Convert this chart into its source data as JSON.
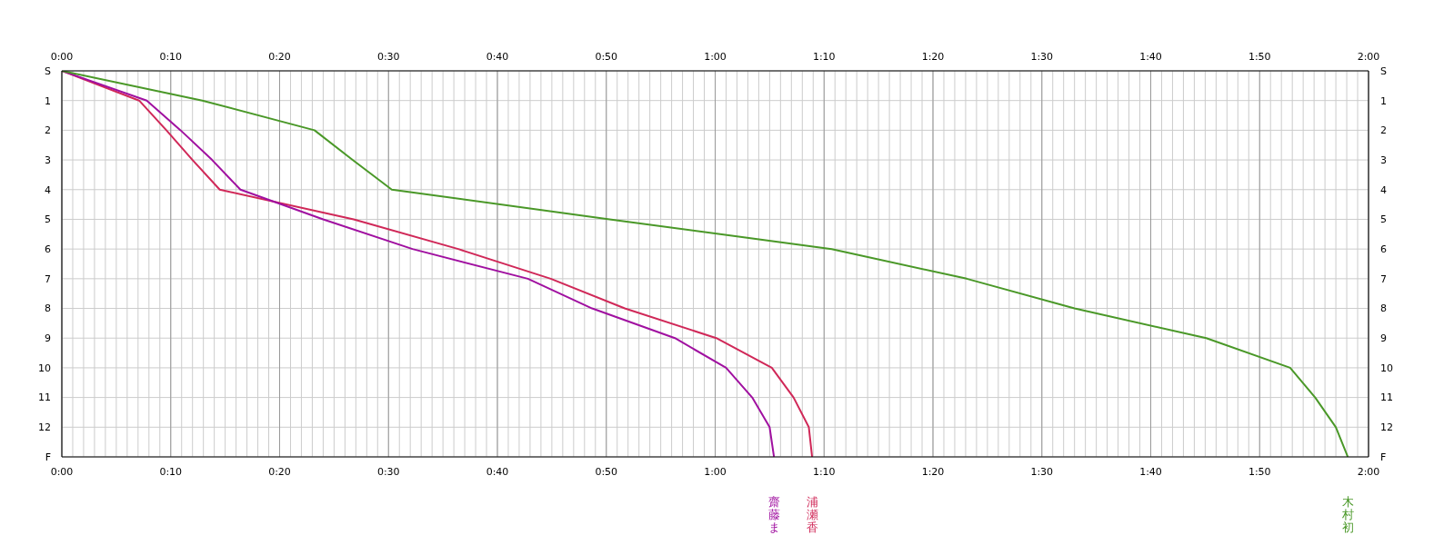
{
  "chart_data": {
    "type": "line",
    "xlim": [
      0,
      120
    ],
    "xticks": [
      {
        "value": 0,
        "label": "0:00"
      },
      {
        "value": 1,
        "label": null
      },
      {
        "value": 2,
        "label": null
      },
      {
        "value": 3,
        "label": null
      },
      {
        "value": 4,
        "label": null
      },
      {
        "value": 5,
        "label": null
      },
      {
        "value": 6,
        "label": null
      },
      {
        "value": 7,
        "label": null
      },
      {
        "value": 8,
        "label": null
      },
      {
        "value": 9,
        "label": null
      },
      {
        "value": 10,
        "label": "0:10"
      },
      {
        "value": 11,
        "label": null
      },
      {
        "value": 12,
        "label": null
      },
      {
        "value": 13,
        "label": null
      },
      {
        "value": 14,
        "label": null
      },
      {
        "value": 15,
        "label": null
      },
      {
        "value": 16,
        "label": null
      },
      {
        "value": 17,
        "label": null
      },
      {
        "value": 18,
        "label": null
      },
      {
        "value": 19,
        "label": null
      },
      {
        "value": 20,
        "label": "0:20"
      },
      {
        "value": 21,
        "label": null
      },
      {
        "value": 22,
        "label": null
      },
      {
        "value": 23,
        "label": null
      },
      {
        "value": 24,
        "label": null
      },
      {
        "value": 25,
        "label": null
      },
      {
        "value": 26,
        "label": null
      },
      {
        "value": 27,
        "label": null
      },
      {
        "value": 28,
        "label": null
      },
      {
        "value": 29,
        "label": null
      },
      {
        "value": 30,
        "label": "0:30"
      },
      {
        "value": 31,
        "label": null
      },
      {
        "value": 32,
        "label": null
      },
      {
        "value": 33,
        "label": null
      },
      {
        "value": 34,
        "label": null
      },
      {
        "value": 35,
        "label": null
      },
      {
        "value": 36,
        "label": null
      },
      {
        "value": 37,
        "label": null
      },
      {
        "value": 38,
        "label": null
      },
      {
        "value": 39,
        "label": null
      },
      {
        "value": 40,
        "label": "0:40"
      },
      {
        "value": 41,
        "label": null
      },
      {
        "value": 42,
        "label": null
      },
      {
        "value": 43,
        "label": null
      },
      {
        "value": 44,
        "label": null
      },
      {
        "value": 45,
        "label": null
      },
      {
        "value": 46,
        "label": null
      },
      {
        "value": 47,
        "label": null
      },
      {
        "value": 48,
        "label": null
      },
      {
        "value": 49,
        "label": null
      },
      {
        "value": 50,
        "label": "0:50"
      },
      {
        "value": 51,
        "label": null
      },
      {
        "value": 52,
        "label": null
      },
      {
        "value": 53,
        "label": null
      },
      {
        "value": 54,
        "label": null
      },
      {
        "value": 55,
        "label": null
      },
      {
        "value": 56,
        "label": null
      },
      {
        "value": 57,
        "label": null
      },
      {
        "value": 58,
        "label": null
      },
      {
        "value": 59,
        "label": null
      },
      {
        "value": 60,
        "label": "1:00"
      },
      {
        "value": 61,
        "label": null
      },
      {
        "value": 62,
        "label": null
      },
      {
        "value": 63,
        "label": null
      },
      {
        "value": 64,
        "label": null
      },
      {
        "value": 65,
        "label": null
      },
      {
        "value": 66,
        "label": null
      },
      {
        "value": 67,
        "label": null
      },
      {
        "value": 68,
        "label": null
      },
      {
        "value": 69,
        "label": null
      },
      {
        "value": 70,
        "label": "1:10"
      },
      {
        "value": 71,
        "label": null
      },
      {
        "value": 72,
        "label": null
      },
      {
        "value": 73,
        "label": null
      },
      {
        "value": 74,
        "label": null
      },
      {
        "value": 75,
        "label": null
      },
      {
        "value": 76,
        "label": null
      },
      {
        "value": 77,
        "label": null
      },
      {
        "value": 78,
        "label": null
      },
      {
        "value": 79,
        "label": null
      },
      {
        "value": 80,
        "label": "1:20"
      },
      {
        "value": 81,
        "label": null
      },
      {
        "value": 82,
        "label": null
      },
      {
        "value": 83,
        "label": null
      },
      {
        "value": 84,
        "label": null
      },
      {
        "value": 85,
        "label": null
      },
      {
        "value": 86,
        "label": null
      },
      {
        "value": 87,
        "label": null
      },
      {
        "value": 88,
        "label": null
      },
      {
        "value": 89,
        "label": null
      },
      {
        "value": 90,
        "label": "1:30"
      },
      {
        "value": 91,
        "label": null
      },
      {
        "value": 92,
        "label": null
      },
      {
        "value": 93,
        "label": null
      },
      {
        "value": 94,
        "label": null
      },
      {
        "value": 95,
        "label": null
      },
      {
        "value": 96,
        "label": null
      },
      {
        "value": 97,
        "label": null
      },
      {
        "value": 98,
        "label": null
      },
      {
        "value": 99,
        "label": null
      },
      {
        "value": 100,
        "label": "1:40"
      },
      {
        "value": 101,
        "label": null
      },
      {
        "value": 102,
        "label": null
      },
      {
        "value": 103,
        "label": null
      },
      {
        "value": 104,
        "label": null
      },
      {
        "value": 105,
        "label": null
      },
      {
        "value": 106,
        "label": null
      },
      {
        "value": 107,
        "label": null
      },
      {
        "value": 108,
        "label": null
      },
      {
        "value": 109,
        "label": null
      },
      {
        "value": 110,
        "label": "1:50"
      },
      {
        "value": 111,
        "label": null
      },
      {
        "value": 112,
        "label": null
      },
      {
        "value": 113,
        "label": null
      },
      {
        "value": 114,
        "label": null
      },
      {
        "value": 115,
        "label": null
      },
      {
        "value": 116,
        "label": null
      },
      {
        "value": 117,
        "label": null
      },
      {
        "value": 118,
        "label": null
      },
      {
        "value": 119,
        "label": null
      },
      {
        "value": 120,
        "label": "2:00"
      }
    ],
    "x2lim": [
      0,
      120
    ],
    "x2ticks": [
      {
        "value": 0,
        "label": "0:00"
      },
      {
        "value": 10,
        "label": "0:10"
      },
      {
        "value": 20,
        "label": "0:20"
      },
      {
        "value": 30,
        "label": "0:30"
      },
      {
        "value": 40,
        "label": "0:40"
      },
      {
        "value": 50,
        "label": "0:50"
      },
      {
        "value": 60,
        "label": "1:00"
      },
      {
        "value": 70,
        "label": "1:10"
      },
      {
        "value": 80,
        "label": "1:20"
      },
      {
        "value": 90,
        "label": "1:30"
      },
      {
        "value": 100,
        "label": "1:40"
      },
      {
        "value": 110,
        "label": "1:50"
      },
      {
        "value": 120,
        "label": "2:00"
      }
    ],
    "orientation": "horizontal",
    "categories": [
      "S",
      "1",
      "2",
      "3",
      "4",
      "5",
      "6",
      "7",
      "8",
      "9",
      "10",
      "11",
      "12",
      "F"
    ],
    "grid": true,
    "series": [
      {
        "name": "浦瀬香",
        "color": "#d02858",
        "values": [
          0,
          7.1,
          9.6,
          12.0,
          14.5,
          26.8,
          36.4,
          44.9,
          51.7,
          60.1,
          65.2,
          67.2,
          68.6,
          68.9
        ]
      },
      {
        "name": "齋藤ま",
        "color": "#a010a0",
        "values": [
          0,
          7.8,
          10.9,
          13.8,
          16.4,
          24.0,
          32.2,
          42.8,
          48.7,
          56.3,
          61.0,
          63.4,
          65.0,
          65.4
        ]
      },
      {
        "name": "木村初",
        "color": "#4a9828",
        "values": [
          0,
          12.9,
          23.2,
          26.7,
          30.3,
          50.3,
          70.7,
          83.1,
          93.0,
          105.1,
          112.8,
          115.1,
          117.0,
          118.1
        ]
      }
    ]
  }
}
